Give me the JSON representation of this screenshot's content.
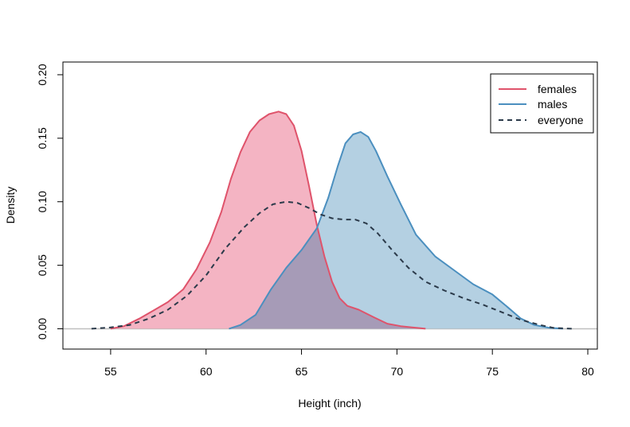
{
  "chart_data": {
    "type": "area",
    "title": "",
    "xlabel": "Height (inch)",
    "ylabel": "Density",
    "xlim": [
      52.5,
      80.5
    ],
    "ylim": [
      -0.016,
      0.21
    ],
    "x_ticks": [
      55,
      60,
      65,
      70,
      75,
      80
    ],
    "y_ticks": [
      "0.00",
      "0.05",
      "0.10",
      "0.15",
      "0.20"
    ],
    "legend_position": "top-right",
    "baseline": 0,
    "series": [
      {
        "name": "females",
        "line_color": "#df536b",
        "fill_color": "#f2a7b8",
        "style": "filled",
        "x": [
          55,
          55.7,
          56.5,
          57.2,
          58,
          58.8,
          59.5,
          60.2,
          60.8,
          61.3,
          61.8,
          62.3,
          62.8,
          63.3,
          63.8,
          64.2,
          64.6,
          65.0,
          65.4,
          65.8,
          66.2,
          66.6,
          67.0,
          67.4,
          68.0,
          68.8,
          69.5,
          70.2,
          70.8,
          71.5
        ],
        "y": [
          0.0,
          0.002,
          0.008,
          0.014,
          0.021,
          0.031,
          0.047,
          0.068,
          0.092,
          0.118,
          0.139,
          0.155,
          0.164,
          0.169,
          0.171,
          0.169,
          0.16,
          0.14,
          0.112,
          0.082,
          0.057,
          0.037,
          0.024,
          0.018,
          0.015,
          0.009,
          0.004,
          0.002,
          0.001,
          0.0
        ]
      },
      {
        "name": "males",
        "line_color": "#4b8fbf",
        "fill_color": "#a7c8dd",
        "style": "filled",
        "x": [
          61.2,
          61.8,
          62.6,
          63.4,
          64.2,
          65.0,
          65.8,
          66.4,
          66.9,
          67.3,
          67.7,
          68.1,
          68.5,
          68.9,
          69.5,
          70.2,
          71.0,
          72.0,
          73.0,
          74.0,
          75.0,
          75.8,
          76.5,
          77.2,
          78.0,
          78.7
        ],
        "y": [
          0.0,
          0.003,
          0.011,
          0.031,
          0.048,
          0.062,
          0.079,
          0.103,
          0.128,
          0.146,
          0.153,
          0.155,
          0.151,
          0.14,
          0.12,
          0.098,
          0.074,
          0.057,
          0.046,
          0.035,
          0.027,
          0.017,
          0.008,
          0.003,
          0.0007,
          0.0
        ]
      },
      {
        "name": "everyone",
        "line_color": "#2b3a4a",
        "style": "dashed",
        "x": [
          54,
          55,
          56,
          57,
          58,
          59,
          60,
          61,
          62,
          62.8,
          63.5,
          64.2,
          64.8,
          65.4,
          66.0,
          66.6,
          67.2,
          67.8,
          68.4,
          69.0,
          69.8,
          70.6,
          71.5,
          72.5,
          73.5,
          74.5,
          75.5,
          76.5,
          77.5,
          78.2,
          79.2
        ],
        "y": [
          0.0,
          0.001,
          0.003,
          0.008,
          0.015,
          0.026,
          0.042,
          0.063,
          0.08,
          0.091,
          0.098,
          0.1,
          0.099,
          0.095,
          0.09,
          0.087,
          0.086,
          0.086,
          0.083,
          0.075,
          0.061,
          0.048,
          0.037,
          0.03,
          0.024,
          0.019,
          0.013,
          0.007,
          0.003,
          0.0007,
          0.0
        ]
      }
    ]
  }
}
